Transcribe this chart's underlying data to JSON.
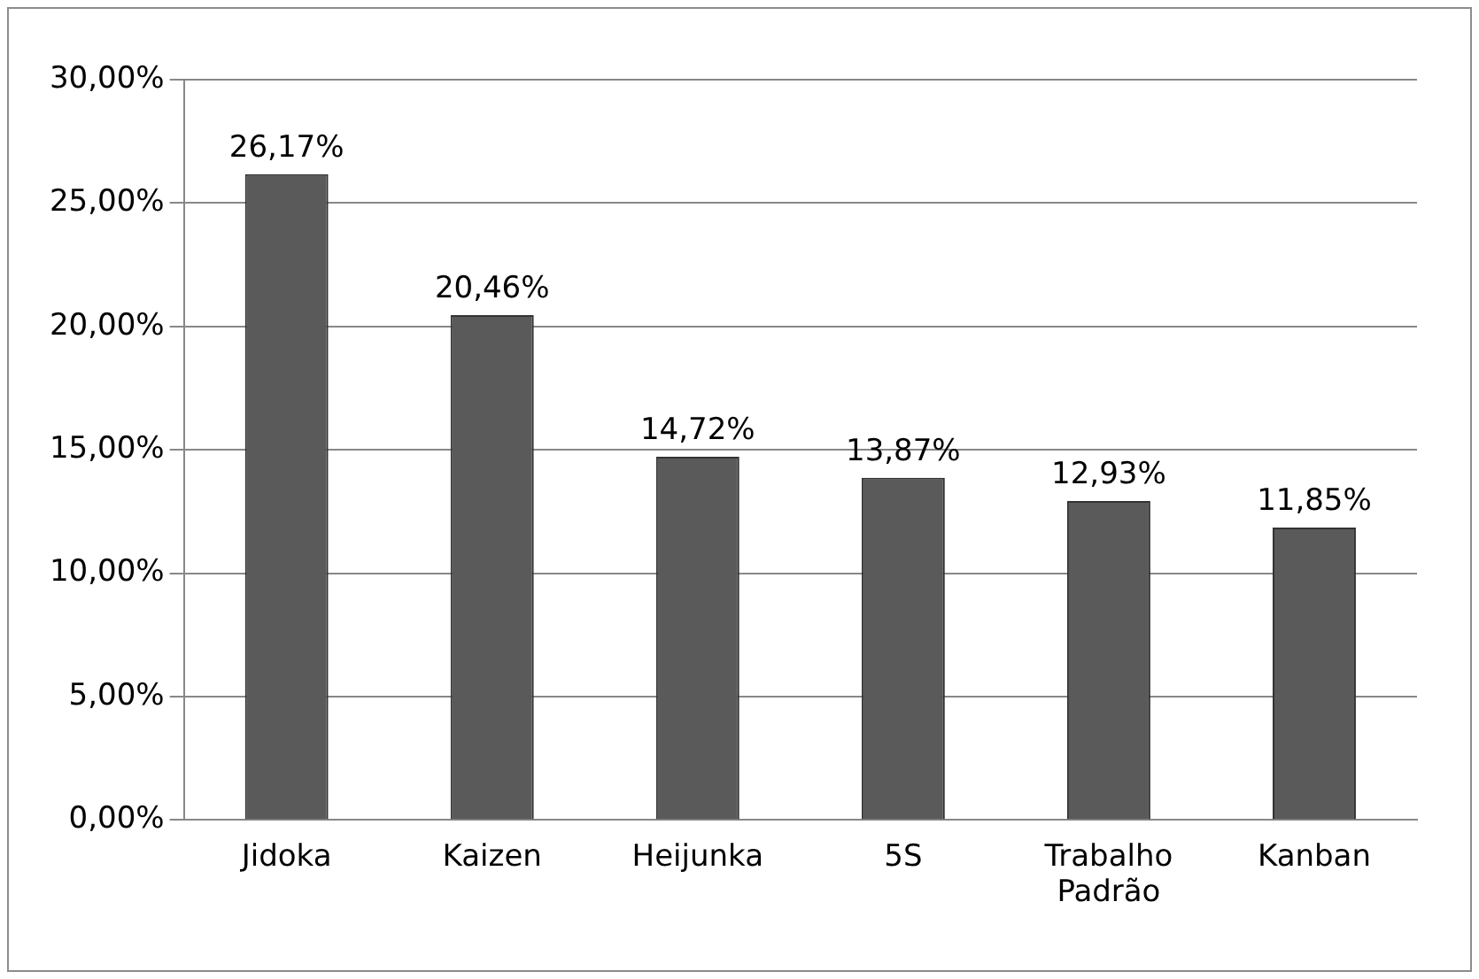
{
  "chart_data": {
    "type": "bar",
    "categories": [
      "Jidoka",
      "Kaizen",
      "Heijunka",
      "5S",
      "Trabalho Padrão",
      "Kanban"
    ],
    "values": [
      26.17,
      20.46,
      14.72,
      13.87,
      12.93,
      11.85
    ],
    "value_labels": [
      "26,17%",
      "20,46%",
      "14,72%",
      "13,87%",
      "12,93%",
      "11,85%"
    ],
    "color": "#5a5a5a",
    "ylim": [
      0,
      30
    ],
    "yticks": [
      {
        "value": 0,
        "label": "0,00%"
      },
      {
        "value": 5,
        "label": "5,00%"
      },
      {
        "value": 10,
        "label": "10,00%"
      },
      {
        "value": 15,
        "label": "15,00%"
      },
      {
        "value": 20,
        "label": "20,00%"
      },
      {
        "value": 25,
        "label": "25,00%"
      },
      {
        "value": 30,
        "label": "30,00%"
      }
    ],
    "grid": "y",
    "legend": false
  }
}
